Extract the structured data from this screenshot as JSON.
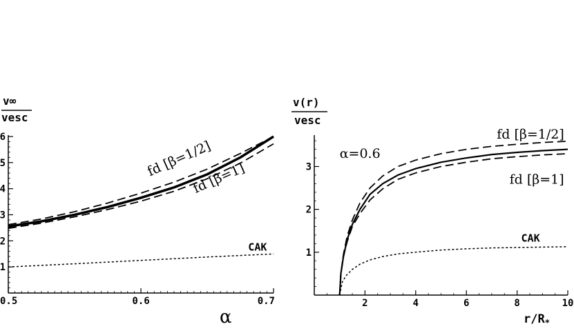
{
  "chart_data": [
    {
      "type": "line",
      "ylabel_num": "v∞",
      "ylabel_den": "vesc",
      "xlabel": "α",
      "xlim": [
        0.5,
        0.7
      ],
      "ylim": [
        0,
        6
      ],
      "x_ticks": [
        0.5,
        0.6,
        0.7
      ],
      "x_tick_labels": [
        "0.5",
        "0.6",
        "0.7"
      ],
      "y_ticks": [
        1,
        2,
        3,
        4,
        5,
        6
      ],
      "y_tick_labels": [
        "1",
        "2",
        "3",
        "4",
        "5",
        "6"
      ],
      "series": [
        {
          "label": "",
          "style": "solid-thick",
          "x": [
            0.5,
            0.525,
            0.55,
            0.575,
            0.6,
            0.625,
            0.65,
            0.675,
            0.7
          ],
          "y": [
            2.55,
            2.75,
            3.0,
            3.3,
            3.65,
            4.05,
            4.55,
            5.2,
            6.0
          ]
        },
        {
          "label": "fd [β=1/2]",
          "style": "dashed",
          "x": [
            0.5,
            0.525,
            0.55,
            0.575,
            0.6,
            0.625,
            0.65,
            0.675,
            0.7
          ],
          "y": [
            2.62,
            2.84,
            3.12,
            3.45,
            3.83,
            4.25,
            4.75,
            5.35,
            6.0
          ]
        },
        {
          "label": "fd [β=1]",
          "style": "dashed",
          "x": [
            0.5,
            0.525,
            0.55,
            0.575,
            0.6,
            0.625,
            0.65,
            0.675,
            0.7
          ],
          "y": [
            2.48,
            2.68,
            2.92,
            3.2,
            3.52,
            3.9,
            4.38,
            4.98,
            5.72
          ]
        },
        {
          "label": "CAK",
          "style": "dotted",
          "x": [
            0.5,
            0.55,
            0.6,
            0.65,
            0.7
          ],
          "y": [
            1.0,
            1.12,
            1.25,
            1.38,
            1.5
          ]
        }
      ],
      "annotations": [
        {
          "text": "fd [β=1/2]",
          "x": 0.63,
          "y": 5.0,
          "rotate": -24
        },
        {
          "text": "fd [β=1]",
          "x": 0.66,
          "y": 4.25,
          "rotate": -24
        },
        {
          "text": "CAK",
          "x": 0.695,
          "y": 1.62,
          "rotate": 0
        }
      ]
    },
    {
      "type": "line",
      "ylabel_num": "v(r)",
      "ylabel_den": "vesc",
      "xlabel_main": "r/R",
      "xlabel_sub": "*",
      "xlim": [
        0,
        10
      ],
      "ylim": [
        0,
        3.7
      ],
      "x_ticks": [
        2,
        4,
        6,
        8,
        10
      ],
      "x_tick_labels": [
        "2",
        "4",
        "6",
        "8",
        "10"
      ],
      "y_ticks": [
        1,
        2,
        3
      ],
      "y_tick_labels": [
        "1",
        "2",
        "3"
      ],
      "series": [
        {
          "label": "",
          "style": "solid",
          "x": [
            1.0,
            1.05,
            1.15,
            1.3,
            1.5,
            1.8,
            2.2,
            2.7,
            3.3,
            4,
            5,
            6,
            7,
            8,
            9,
            10
          ],
          "y": [
            0.0,
            0.5,
            0.9,
            1.3,
            1.65,
            2.0,
            2.35,
            2.6,
            2.8,
            2.95,
            3.1,
            3.2,
            3.28,
            3.33,
            3.37,
            3.4
          ]
        },
        {
          "label": "fd [β=1/2]",
          "style": "dashed",
          "x": [
            1.0,
            1.05,
            1.15,
            1.3,
            1.5,
            1.8,
            2.2,
            2.7,
            3.3,
            4,
            5,
            6,
            7,
            8,
            9,
            10
          ],
          "y": [
            0.0,
            0.5,
            0.95,
            1.38,
            1.75,
            2.15,
            2.5,
            2.78,
            3.0,
            3.15,
            3.3,
            3.4,
            3.47,
            3.52,
            3.56,
            3.59
          ]
        },
        {
          "label": "fd [β=1]",
          "style": "dashed",
          "x": [
            1.0,
            1.05,
            1.15,
            1.3,
            1.5,
            1.8,
            2.2,
            2.7,
            3.3,
            4,
            5,
            6,
            7,
            8,
            9,
            10
          ],
          "y": [
            0.0,
            0.5,
            0.9,
            1.25,
            1.6,
            1.9,
            2.22,
            2.48,
            2.7,
            2.85,
            3.0,
            3.1,
            3.18,
            3.23,
            3.27,
            3.3
          ]
        },
        {
          "label": "CAK",
          "style": "dotted",
          "x": [
            1.0,
            1.1,
            1.25,
            1.5,
            1.8,
            2.2,
            2.7,
            3.3,
            4,
            5,
            6,
            7,
            8,
            9,
            10
          ],
          "y": [
            0.0,
            0.3,
            0.45,
            0.6,
            0.72,
            0.82,
            0.9,
            0.96,
            1.0,
            1.05,
            1.08,
            1.1,
            1.11,
            1.12,
            1.13
          ]
        }
      ],
      "annotations": [
        {
          "text": "α=0.6",
          "x": 1.0,
          "y": 3.2,
          "rotate": 0
        },
        {
          "text": "fd [β=1/2]",
          "x": 7.2,
          "y": 3.65,
          "rotate": 0
        },
        {
          "text": "fd [β=1]",
          "x": 7.7,
          "y": 2.6,
          "rotate": 0
        },
        {
          "text": "CAK",
          "x": 8.9,
          "y": 1.25,
          "rotate": 0
        }
      ]
    }
  ]
}
